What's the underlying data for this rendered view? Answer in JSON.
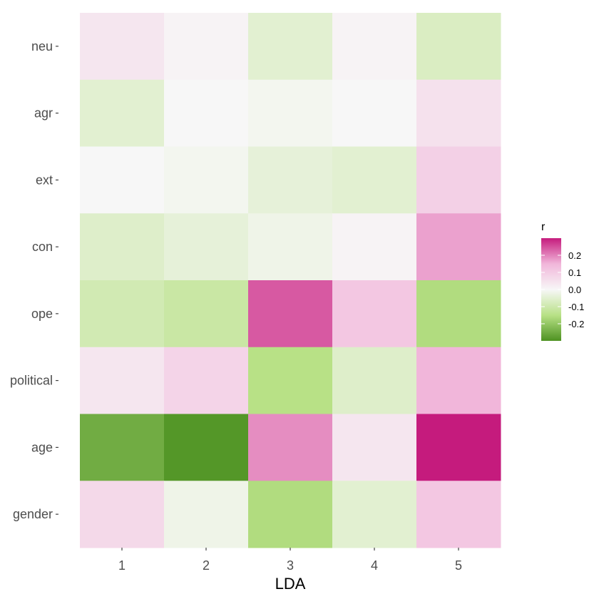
{
  "chart_data": {
    "type": "heatmap",
    "xlabel": "LDA",
    "ylabel": "",
    "x_categories": [
      "1",
      "2",
      "3",
      "4",
      "5"
    ],
    "y_categories": [
      "neu",
      "agr",
      "ext",
      "con",
      "ope",
      "political",
      "age",
      "gender"
    ],
    "values": [
      [
        0.04,
        0.01,
        -0.05,
        0.01,
        -0.07
      ],
      [
        -0.05,
        0.0,
        -0.01,
        0.0,
        0.05
      ],
      [
        0.0,
        -0.01,
        -0.04,
        -0.05,
        0.09
      ],
      [
        -0.06,
        -0.04,
        -0.02,
        0.01,
        0.17
      ],
      [
        -0.09,
        -0.11,
        0.24,
        0.11,
        -0.16
      ],
      [
        0.04,
        0.08,
        -0.15,
        -0.06,
        0.15
      ],
      [
        -0.25,
        -0.29,
        0.19,
        0.04,
        0.34
      ],
      [
        0.07,
        -0.02,
        -0.16,
        -0.05,
        0.11
      ]
    ],
    "legend": {
      "title": "r",
      "ticks": [
        0.2,
        0.1,
        0.0,
        -0.1,
        -0.2
      ],
      "tick_labels": [
        "0.2",
        "0.1",
        "0.0",
        "-0.1",
        "-0.2"
      ],
      "range": [
        -0.3,
        0.3
      ],
      "placement": "right"
    },
    "colors": {
      "low": "#4d9221",
      "mid": "#f7f7f7",
      "high": "#c51b7d"
    },
    "grid": false
  }
}
